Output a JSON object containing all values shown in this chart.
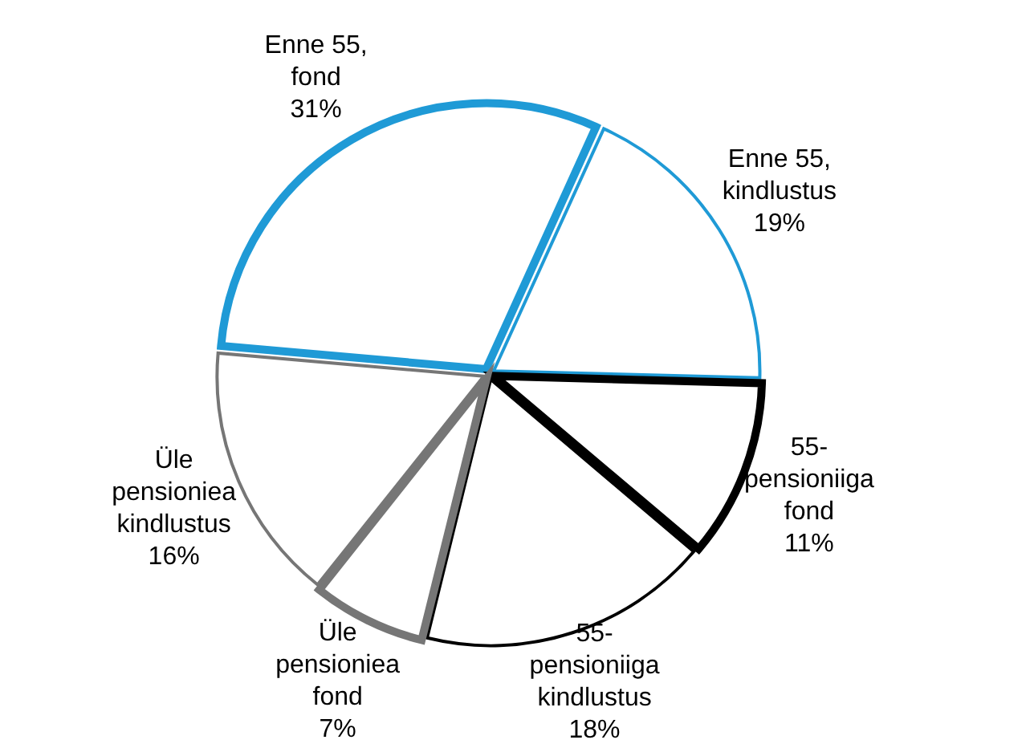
{
  "chart_data": {
    "type": "pie",
    "categories": [
      "Enne 55, fond",
      "Enne 55, kindlustus",
      "55-pensioniiga fond",
      "55-pensioniiga kindlustus",
      "Üle pensioniea fond",
      "Üle pensioniea kindlustus"
    ],
    "values": [
      31,
      19,
      11,
      18,
      7,
      16
    ],
    "value_labels": [
      "31%",
      "19%",
      "11%",
      "18%",
      "7%",
      "16%"
    ],
    "colors": [
      "#1f9ad6",
      "#1f9ad6",
      "#000000",
      "#000000",
      "#767676",
      "#767676"
    ],
    "legend": false
  }
}
